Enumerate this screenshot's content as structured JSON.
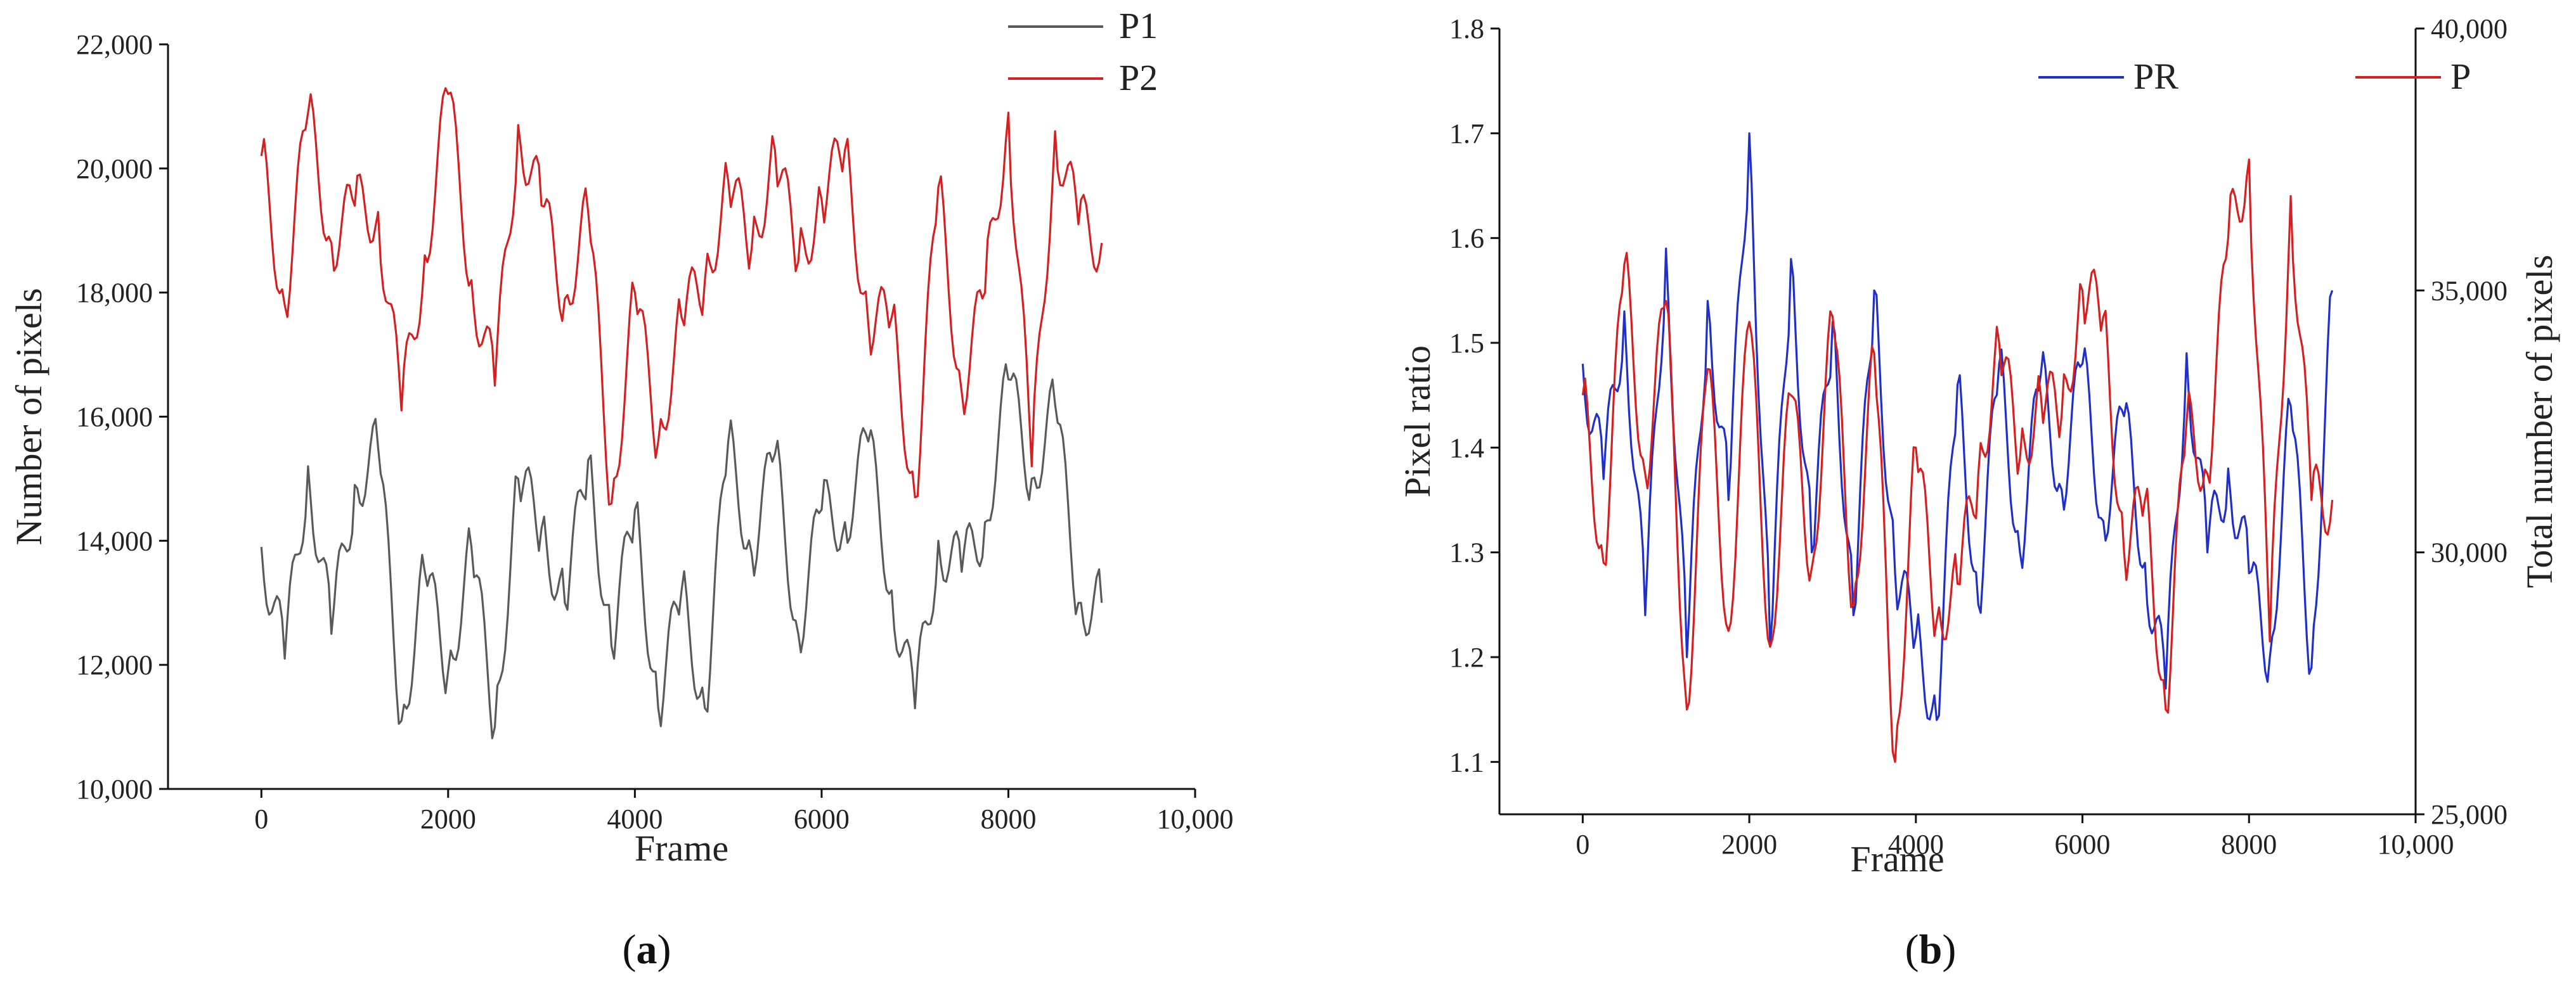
{
  "chart_data": [
    {
      "type": "line",
      "panel_label": {
        "open": "(",
        "letter": "a",
        "close": ")"
      },
      "title": "",
      "xlabel": "Frame",
      "ylabel": "Number of pixels",
      "xlim": [
        -1000,
        10000
      ],
      "ylim": [
        10000,
        22000
      ],
      "xticks": [
        0,
        2000,
        4000,
        6000,
        8000,
        10000
      ],
      "xtick_labels": [
        "0",
        "2000",
        "4000",
        "6000",
        "8000",
        "10,000"
      ],
      "yticks": [
        10000,
        12000,
        14000,
        16000,
        18000,
        20000,
        22000
      ],
      "ytick_labels": [
        "10,000",
        "12,000",
        "14,000",
        "16,000",
        "18,000",
        "20,000",
        "22,000"
      ],
      "legend_position": "top-right",
      "x": [
        0,
        250,
        500,
        750,
        1000,
        1250,
        1500,
        1750,
        2000,
        2250,
        2500,
        2750,
        3000,
        3250,
        3500,
        3750,
        4000,
        4250,
        4500,
        4750,
        5000,
        5250,
        5500,
        5750,
        6000,
        6250,
        6500,
        6750,
        7000,
        7250,
        7500,
        7750,
        8000,
        8250,
        8500,
        8750,
        9000
      ],
      "series": [
        {
          "name": "P1",
          "color": "#5a5a5a",
          "values": [
            13900,
            12100,
            15200,
            12500,
            14900,
            15500,
            11100,
            13500,
            11900,
            13900,
            11000,
            15000,
            14200,
            13000,
            15300,
            12300,
            14500,
            11300,
            13200,
            11300,
            15600,
            13800,
            15400,
            12500,
            14500,
            14300,
            15600,
            13200,
            11300,
            14000,
            13500,
            14300,
            16600,
            15000,
            16200,
            13000,
            13000
          ]
        },
        {
          "name": "P2",
          "color": "#d42020",
          "values": [
            20200,
            17800,
            20900,
            18800,
            19400,
            19300,
            16100,
            18600,
            21200,
            18200,
            16500,
            20700,
            19400,
            17900,
            19300,
            14600,
            18000,
            15600,
            17600,
            18200,
            19800,
            18700,
            20300,
            18500,
            19500,
            20300,
            17500,
            17600,
            14700,
            19700,
            16400,
            18000,
            20900,
            15200,
            20600,
            19100,
            18800
          ]
        }
      ]
    },
    {
      "type": "line",
      "panel_label": {
        "open": "(",
        "letter": "b",
        "close": ")"
      },
      "title": "",
      "xlabel": "Frame",
      "ylabel": "Pixel ratio",
      "y2label": "Total number of pixels",
      "xlim": [
        -1000,
        10000
      ],
      "ylim": [
        1.05,
        1.8
      ],
      "y2lim": [
        25000,
        40000
      ],
      "xticks": [
        0,
        2000,
        4000,
        6000,
        8000,
        10000
      ],
      "xtick_labels": [
        "0",
        "2000",
        "4000",
        "6000",
        "8000",
        "10,000"
      ],
      "yticks": [
        1.1,
        1.2,
        1.3,
        1.4,
        1.5,
        1.6,
        1.7,
        1.8
      ],
      "ytick_labels": [
        "1.1",
        "1.2",
        "1.3",
        "1.4",
        "1.5",
        "1.6",
        "1.7",
        "1.8"
      ],
      "y2ticks": [
        25000,
        30000,
        35000,
        40000
      ],
      "y2tick_labels": [
        "25,000",
        "30,000",
        "35,000",
        "40,000"
      ],
      "legend_position": "top-right",
      "x": [
        0,
        250,
        500,
        750,
        1000,
        1250,
        1500,
        1750,
        2000,
        2250,
        2500,
        2750,
        3000,
        3250,
        3500,
        3750,
        4000,
        4250,
        4500,
        4750,
        5000,
        5250,
        5500,
        5750,
        6000,
        6250,
        6500,
        6750,
        7000,
        7250,
        7500,
        7750,
        8000,
        8250,
        8500,
        8750,
        9000
      ],
      "series": [
        {
          "name": "PR",
          "axis": "left",
          "color": "#1f2fc8",
          "values": [
            1.48,
            1.37,
            1.53,
            1.24,
            1.59,
            1.2,
            1.54,
            1.35,
            1.7,
            1.21,
            1.58,
            1.3,
            1.52,
            1.24,
            1.55,
            1.28,
            1.22,
            1.14,
            1.46,
            1.25,
            1.48,
            1.3,
            1.47,
            1.36,
            1.48,
            1.33,
            1.43,
            1.29,
            1.17,
            1.49,
            1.3,
            1.38,
            1.28,
            1.2,
            1.44,
            1.19,
            1.55
          ]
        },
        {
          "name": "P",
          "axis": "right",
          "color": "#d42020",
          "values": [
            33000,
            29800,
            35500,
            31500,
            34800,
            27000,
            33500,
            28500,
            34400,
            28200,
            33000,
            29700,
            34500,
            29000,
            33800,
            26000,
            32000,
            28700,
            29400,
            31500,
            34000,
            31800,
            33000,
            32600,
            35000,
            34500,
            30000,
            31000,
            27000,
            32500,
            31500,
            36000,
            37500,
            28300,
            36800,
            31000,
            31000
          ]
        }
      ]
    }
  ]
}
